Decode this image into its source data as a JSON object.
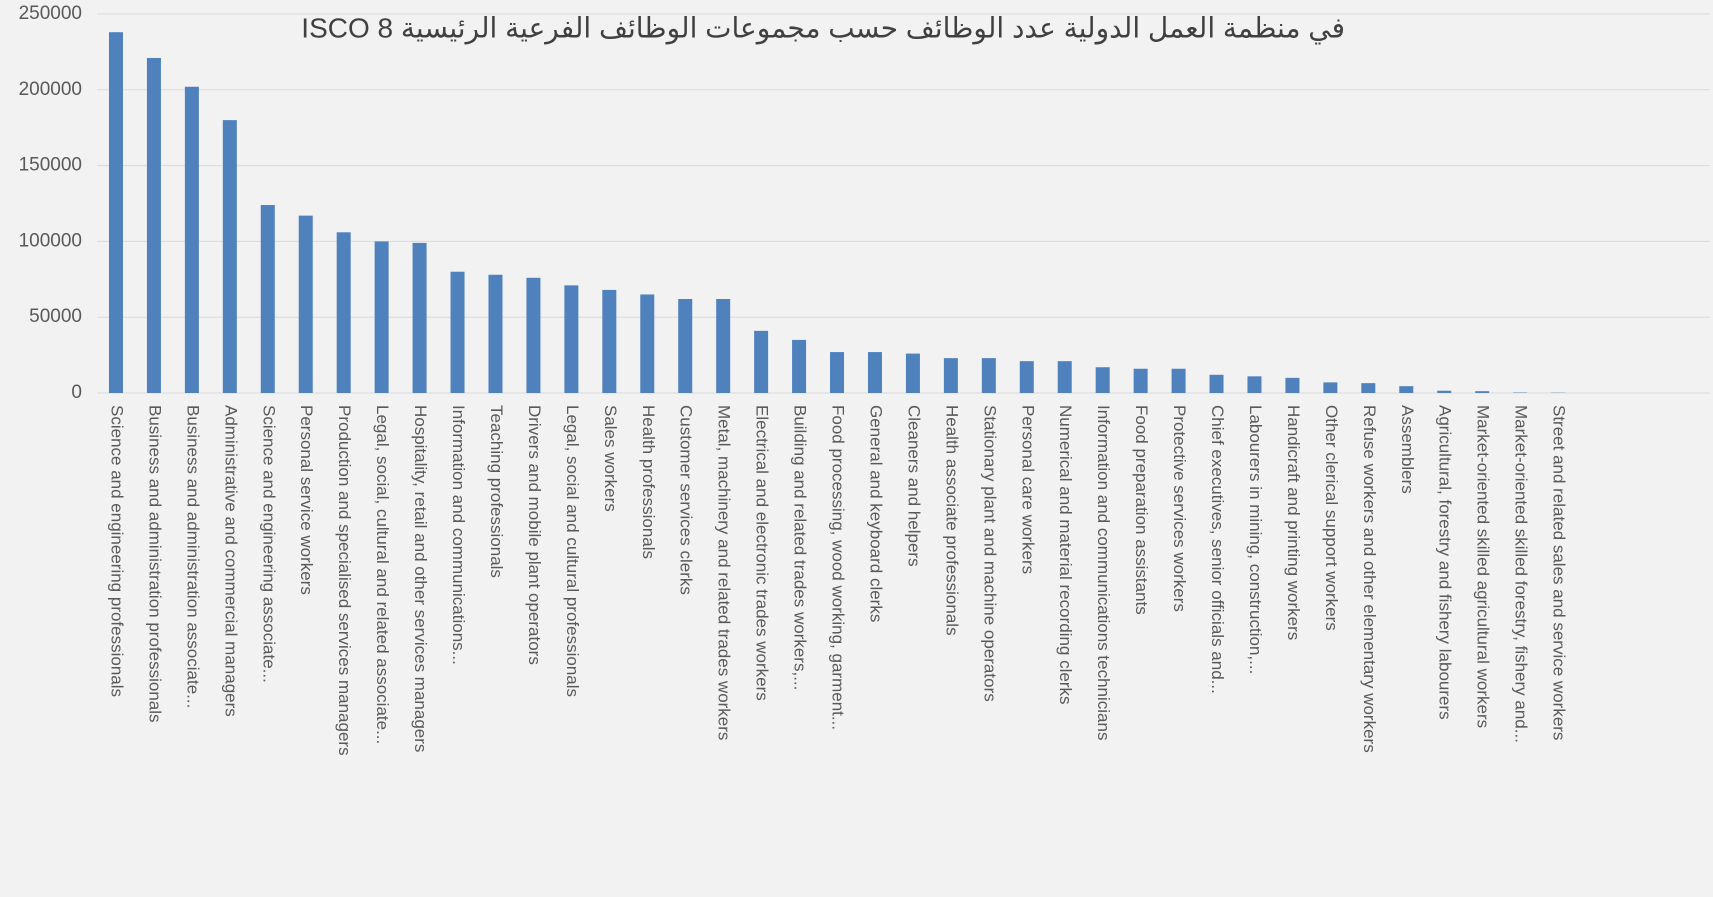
{
  "chart_data": {
    "type": "bar",
    "title": "في منظمة العمل الدولية عدد الوظائف حسب مجموعات الوظائف الفرعية الرئيسية ISCO 8",
    "categories": [
      "Science and engineering professionals",
      "Business and administration professionals",
      "Business and administration associate...",
      "Administrative and commercial managers",
      "Science and engineering associate...",
      "Personal service workers",
      "Production and specialised services managers",
      "Legal, social, cultural and related associate...",
      "Hospitality, retail and other services managers",
      "Information and communications...",
      "Teaching professionals",
      "Drivers and mobile plant operators",
      "Legal, social and cultural professionals",
      "Sales workers",
      "Health professionals",
      "Customer services clerks",
      "Metal, machinery and related trades workers",
      "Electrical and electronic trades workers",
      "Building and related trades workers,...",
      "Food processing, wood working, garment...",
      "General and keyboard clerks",
      "Cleaners and helpers",
      "Health associate professionals",
      "Stationary plant and machine operators",
      "Personal care workers",
      "Numerical and material recording clerks",
      "Information and communications technicians",
      "Food preparation assistants",
      "Protective services workers",
      "Chief executives, senior officials and...",
      "Labourers in mining, construction,...",
      "Handicraft and printing workers",
      "Other clerical support workers",
      "Refuse workers and other elementary workers",
      "Assemblers",
      "Agricultural, forestry and fishery labourers",
      "Market-oriented skilled agricultural workers",
      "Market-oriented skilled forestry, fishery and...",
      "Street and related sales and service workers"
    ],
    "values": [
      238000,
      221000,
      202000,
      180000,
      124000,
      117000,
      106000,
      100000,
      99000,
      80000,
      78000,
      76000,
      71000,
      68000,
      65000,
      62000,
      62000,
      41000,
      35000,
      27000,
      27000,
      26000,
      23000,
      23000,
      21000,
      21000,
      17000,
      16000,
      16000,
      12000,
      11000,
      10000,
      7000,
      6500,
      4500,
      1500,
      1200,
      300,
      200
    ],
    "color": "#4f81bd",
    "ylim": [
      0,
      250000
    ],
    "yticks": [
      0,
      50000,
      100000,
      150000,
      200000,
      250000
    ],
    "grid": true
  }
}
